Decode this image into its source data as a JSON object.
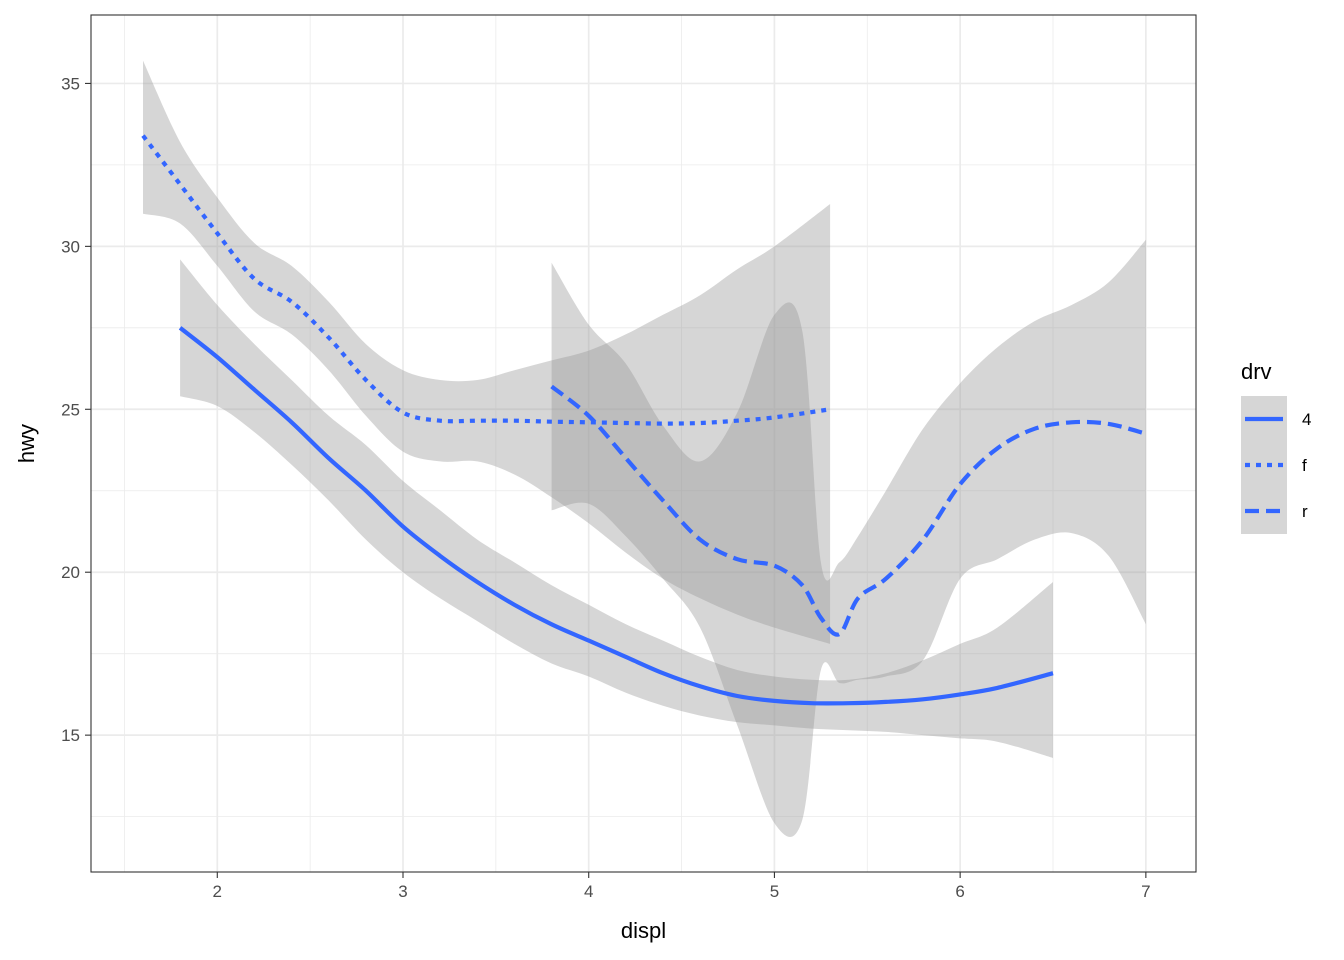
{
  "chart_data": {
    "type": "line",
    "title": "",
    "xlabel": "displ",
    "ylabel": "hwy",
    "xlim": [
      1.32,
      7.27
    ],
    "ylim": [
      10.8,
      37.1
    ],
    "x_ticks": [
      2,
      3,
      4,
      5,
      6,
      7
    ],
    "x_tick_labels": [
      "2",
      "3",
      "4",
      "5",
      "6",
      "7"
    ],
    "y_ticks": [
      15,
      20,
      25,
      30,
      35
    ],
    "y_tick_labels": [
      "15",
      "20",
      "25",
      "30",
      "35"
    ],
    "grid": true,
    "legend": {
      "title": "drv",
      "position": "right"
    },
    "line_color": "#3366FF",
    "ribbon_color": "#999999",
    "series": [
      {
        "name": "4",
        "linetype": "solid",
        "x": [
          1.8,
          2.0,
          2.2,
          2.4,
          2.6,
          2.8,
          3.0,
          3.2,
          3.4,
          3.6,
          3.8,
          4.0,
          4.2,
          4.4,
          4.6,
          4.8,
          5.0,
          5.2,
          5.4,
          5.6,
          5.8,
          6.0,
          6.2,
          6.5
        ],
        "y": [
          27.5,
          26.6,
          25.6,
          24.6,
          23.5,
          22.5,
          21.4,
          20.5,
          19.7,
          19.0,
          18.4,
          17.9,
          17.4,
          16.9,
          16.5,
          16.2,
          16.05,
          15.98,
          15.98,
          16.02,
          16.1,
          16.25,
          16.45,
          16.9
        ],
        "ymin": [
          25.4,
          25.1,
          24.3,
          23.3,
          22.2,
          21.0,
          20.0,
          19.2,
          18.5,
          17.8,
          17.2,
          16.8,
          16.3,
          15.9,
          15.6,
          15.4,
          15.3,
          15.2,
          15.15,
          15.1,
          15.0,
          14.9,
          14.8,
          14.3
        ],
        "ymax": [
          29.6,
          28.2,
          27.0,
          25.9,
          24.8,
          23.9,
          22.8,
          21.9,
          21.0,
          20.3,
          19.6,
          19.0,
          18.4,
          17.9,
          17.4,
          17.0,
          16.8,
          16.7,
          16.7,
          16.9,
          17.3,
          17.8,
          18.3,
          19.7
        ]
      },
      {
        "name": "f",
        "linetype": "dotted",
        "x": [
          1.6,
          1.8,
          2.0,
          2.2,
          2.4,
          2.6,
          2.8,
          3.0,
          3.2,
          3.4,
          3.6,
          3.8,
          4.0,
          4.2,
          4.4,
          4.6,
          4.8,
          5.0,
          5.3
        ],
        "y": [
          33.4,
          31.9,
          30.4,
          29.0,
          28.3,
          27.2,
          25.9,
          24.9,
          24.65,
          24.65,
          24.65,
          24.62,
          24.6,
          24.58,
          24.56,
          24.58,
          24.65,
          24.75,
          25.0
        ],
        "ymin": [
          31.0,
          30.7,
          29.4,
          28.0,
          27.3,
          26.2,
          24.8,
          23.7,
          23.4,
          23.4,
          23.0,
          22.3,
          21.5,
          20.6,
          19.8,
          19.2,
          18.7,
          18.3,
          17.8
        ],
        "ymax": [
          35.7,
          33.2,
          31.5,
          30.1,
          29.4,
          28.3,
          27.0,
          26.2,
          25.9,
          25.9,
          26.2,
          26.5,
          26.8,
          27.3,
          27.9,
          28.5,
          29.3,
          30.0,
          31.3
        ]
      },
      {
        "name": "r",
        "linetype": "dashed",
        "x": [
          3.8,
          4.0,
          4.2,
          4.4,
          4.6,
          4.8,
          5.0,
          5.15,
          5.25,
          5.35,
          5.45,
          5.6,
          5.8,
          6.0,
          6.2,
          6.4,
          6.6,
          6.8,
          7.0
        ],
        "y": [
          25.7,
          24.8,
          23.5,
          22.2,
          21.0,
          20.4,
          20.2,
          19.6,
          18.6,
          18.1,
          19.2,
          19.8,
          21.0,
          22.7,
          23.8,
          24.4,
          24.6,
          24.55,
          24.25
        ],
        "ymin": [
          21.9,
          22.1,
          21.1,
          19.8,
          18.3,
          15.3,
          12.3,
          12.4,
          17.0,
          16.6,
          16.7,
          16.8,
          17.3,
          19.8,
          20.4,
          21.0,
          21.2,
          20.5,
          18.4
        ],
        "ymax": [
          29.5,
          27.6,
          26.4,
          24.5,
          23.4,
          24.9,
          27.9,
          27.4,
          20.3,
          20.3,
          21.1,
          22.5,
          24.4,
          25.8,
          26.9,
          27.7,
          28.2,
          28.9,
          30.2
        ]
      }
    ]
  }
}
